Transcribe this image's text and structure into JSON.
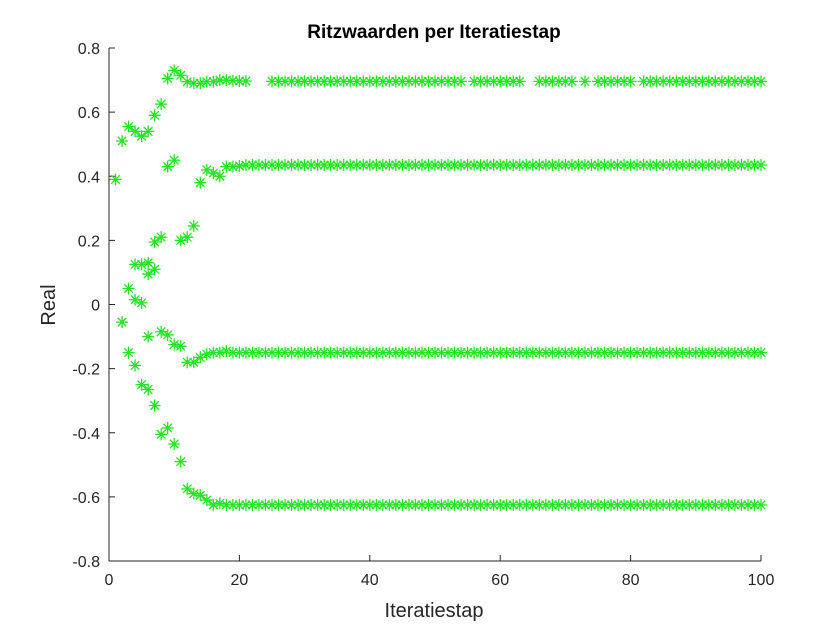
{
  "colors": {
    "marker": "#22e622",
    "axis": "#262626",
    "background": "#ffffff"
  },
  "chart_data": {
    "type": "scatter",
    "marker": "asterisk",
    "title": "Ritzwaarden per Iteratiestap",
    "xlabel": "Iteratiestap",
    "ylabel": "Real",
    "xlim": [
      0,
      100
    ],
    "ylim": [
      -0.8,
      0.8
    ],
    "xticks": [
      0,
      20,
      40,
      60,
      80,
      100
    ],
    "yticks": [
      -0.8,
      -0.6,
      -0.4,
      -0.2,
      0,
      0.2,
      0.4,
      0.6,
      0.8
    ],
    "xtick_labels": [
      "0",
      "20",
      "40",
      "60",
      "80",
      "100"
    ],
    "ytick_labels": [
      "-0.8",
      "-0.6",
      "-0.4",
      "-0.2",
      "0",
      "0.2",
      "0.4",
      "0.6",
      "0.8"
    ],
    "grid": false,
    "series": [
      {
        "x": [
          1,
          2,
          3,
          4,
          5,
          6,
          7,
          8,
          9,
          10,
          11,
          12,
          13,
          14,
          15,
          16,
          17,
          18,
          19,
          20,
          21,
          25,
          26,
          27,
          28,
          29,
          30,
          31,
          32,
          33,
          34,
          35,
          36,
          37,
          38,
          39,
          40,
          41,
          42,
          43,
          44,
          45,
          46,
          47,
          48,
          49,
          50,
          51,
          52,
          53,
          54,
          56,
          57,
          58,
          59,
          60,
          61,
          62,
          63,
          66,
          67,
          68,
          69,
          70,
          71,
          73,
          75,
          76,
          77,
          78,
          79,
          80,
          82,
          83,
          84,
          85,
          86,
          87,
          88,
          89,
          90,
          91,
          92,
          93,
          94,
          95,
          96,
          97,
          98,
          99,
          100
        ],
        "y": [
          0.39,
          0.51,
          0.555,
          0.54,
          0.525,
          0.54,
          0.59,
          0.625,
          0.705,
          0.73,
          0.715,
          0.695,
          0.69,
          0.69,
          0.695,
          0.695,
          0.7,
          0.7,
          0.698,
          0.697,
          0.697,
          0.696,
          0.696,
          0.696,
          0.696,
          0.696,
          0.696,
          0.696,
          0.696,
          0.696,
          0.696,
          0.696,
          0.696,
          0.696,
          0.696,
          0.696,
          0.696,
          0.696,
          0.696,
          0.696,
          0.696,
          0.696,
          0.696,
          0.696,
          0.696,
          0.696,
          0.696,
          0.696,
          0.696,
          0.696,
          0.696,
          0.696,
          0.696,
          0.696,
          0.696,
          0.696,
          0.696,
          0.696,
          0.696,
          0.696,
          0.696,
          0.696,
          0.696,
          0.696,
          0.696,
          0.696,
          0.696,
          0.696,
          0.696,
          0.696,
          0.696,
          0.696,
          0.696,
          0.696,
          0.696,
          0.696,
          0.696,
          0.696,
          0.696,
          0.696,
          0.696,
          0.696,
          0.696,
          0.696,
          0.696,
          0.696,
          0.696,
          0.696,
          0.696,
          0.696,
          0.696
        ]
      },
      {
        "x": [
          4,
          5,
          6,
          7,
          8,
          9,
          10,
          11,
          12,
          13,
          14,
          15,
          16,
          17,
          18,
          19,
          20,
          21,
          22,
          23,
          24,
          25,
          26,
          27,
          28,
          29,
          30,
          31,
          32,
          33,
          34,
          35,
          36,
          37,
          38,
          39,
          40,
          41,
          42,
          43,
          44,
          45,
          46,
          47,
          48,
          49,
          50,
          51,
          52,
          53,
          54,
          55,
          56,
          57,
          58,
          59,
          60,
          61,
          62,
          63,
          64,
          65,
          66,
          67,
          68,
          69,
          70,
          71,
          72,
          73,
          74,
          75,
          76,
          77,
          78,
          79,
          80,
          81,
          82,
          83,
          84,
          85,
          86,
          87,
          88,
          89,
          90,
          91,
          92,
          93,
          94,
          95,
          96,
          97,
          98,
          99,
          100
        ],
        "y": [
          0.125,
          0.125,
          0.13,
          0.195,
          0.21,
          0.43,
          0.45,
          0.2,
          0.21,
          0.245,
          0.38,
          0.42,
          0.41,
          0.4,
          0.43,
          0.43,
          0.432,
          0.435,
          0.435,
          0.435,
          0.435,
          0.435,
          0.435,
          0.435,
          0.435,
          0.435,
          0.435,
          0.435,
          0.435,
          0.435,
          0.435,
          0.435,
          0.435,
          0.435,
          0.435,
          0.435,
          0.435,
          0.435,
          0.435,
          0.435,
          0.435,
          0.435,
          0.435,
          0.435,
          0.435,
          0.435,
          0.435,
          0.435,
          0.435,
          0.435,
          0.435,
          0.435,
          0.435,
          0.435,
          0.435,
          0.435,
          0.435,
          0.435,
          0.435,
          0.435,
          0.435,
          0.435,
          0.435,
          0.435,
          0.435,
          0.435,
          0.435,
          0.435,
          0.435,
          0.435,
          0.435,
          0.435,
          0.435,
          0.435,
          0.435,
          0.435,
          0.435,
          0.435,
          0.435,
          0.435,
          0.435,
          0.435,
          0.435,
          0.435,
          0.435,
          0.435,
          0.435,
          0.435,
          0.435,
          0.435,
          0.435,
          0.435,
          0.435,
          0.435,
          0.435,
          0.435,
          0.435
        ]
      },
      {
        "x": [
          2,
          3,
          4,
          5,
          6,
          6,
          7,
          8,
          9,
          10,
          11,
          12,
          13,
          14,
          15,
          16,
          17,
          18,
          19,
          20,
          21,
          22,
          23,
          24,
          25,
          26,
          27,
          28,
          29,
          30,
          31,
          32,
          33,
          34,
          35,
          36,
          37,
          38,
          39,
          40,
          41,
          42,
          43,
          44,
          45,
          46,
          47,
          48,
          49,
          50,
          51,
          52,
          53,
          54,
          55,
          56,
          57,
          58,
          59,
          60,
          61,
          62,
          63,
          64,
          65,
          66,
          67,
          68,
          69,
          70,
          71,
          72,
          73,
          74,
          75,
          76,
          77,
          78,
          79,
          80,
          81,
          82,
          83,
          84,
          85,
          86,
          87,
          88,
          89,
          90,
          91,
          92,
          93,
          94,
          95,
          96,
          97,
          98,
          99,
          100
        ],
        "y": [
          -0.055,
          0.05,
          0.015,
          0.005,
          0.095,
          -0.1,
          0.11,
          -0.085,
          -0.095,
          -0.125,
          -0.13,
          -0.18,
          -0.18,
          -0.165,
          -0.155,
          -0.15,
          -0.15,
          -0.145,
          -0.15,
          -0.15,
          -0.15,
          -0.15,
          -0.15,
          -0.15,
          -0.15,
          -0.15,
          -0.15,
          -0.15,
          -0.15,
          -0.15,
          -0.15,
          -0.15,
          -0.15,
          -0.15,
          -0.15,
          -0.15,
          -0.15,
          -0.15,
          -0.15,
          -0.15,
          -0.15,
          -0.15,
          -0.15,
          -0.15,
          -0.15,
          -0.15,
          -0.15,
          -0.15,
          -0.15,
          -0.15,
          -0.15,
          -0.15,
          -0.15,
          -0.15,
          -0.15,
          -0.15,
          -0.15,
          -0.15,
          -0.15,
          -0.15,
          -0.15,
          -0.15,
          -0.15,
          -0.15,
          -0.15,
          -0.15,
          -0.15,
          -0.15,
          -0.15,
          -0.15,
          -0.15,
          -0.15,
          -0.15,
          -0.15,
          -0.15,
          -0.15,
          -0.15,
          -0.15,
          -0.15,
          -0.15,
          -0.15,
          -0.15,
          -0.15,
          -0.15,
          -0.15,
          -0.15,
          -0.15,
          -0.15,
          -0.15,
          -0.15,
          -0.15,
          -0.15,
          -0.15,
          -0.15,
          -0.15,
          -0.15,
          -0.15,
          -0.15,
          -0.15,
          -0.15
        ]
      },
      {
        "x": [
          3,
          4,
          5,
          6,
          7,
          8,
          9,
          10,
          11,
          12,
          13,
          14,
          15,
          16,
          17,
          18,
          19,
          20,
          21,
          22,
          23,
          24,
          25,
          26,
          27,
          28,
          29,
          30,
          31,
          32,
          33,
          34,
          35,
          36,
          37,
          38,
          39,
          40,
          41,
          42,
          43,
          44,
          45,
          46,
          47,
          48,
          49,
          50,
          51,
          52,
          53,
          54,
          55,
          56,
          57,
          58,
          59,
          60,
          61,
          62,
          63,
          64,
          65,
          66,
          67,
          68,
          69,
          70,
          71,
          72,
          73,
          74,
          75,
          76,
          77,
          78,
          79,
          80,
          81,
          82,
          83,
          84,
          85,
          86,
          87,
          88,
          89,
          90,
          91,
          92,
          93,
          94,
          95,
          96,
          97,
          98,
          99,
          100
        ],
        "y": [
          -0.15,
          -0.19,
          -0.25,
          -0.265,
          -0.315,
          -0.405,
          -0.385,
          -0.435,
          -0.49,
          -0.575,
          -0.59,
          -0.595,
          -0.61,
          -0.625,
          -0.62,
          -0.625,
          -0.625,
          -0.625,
          -0.625,
          -0.625,
          -0.625,
          -0.625,
          -0.625,
          -0.625,
          -0.625,
          -0.625,
          -0.625,
          -0.625,
          -0.625,
          -0.625,
          -0.625,
          -0.625,
          -0.625,
          -0.625,
          -0.625,
          -0.625,
          -0.625,
          -0.625,
          -0.625,
          -0.625,
          -0.625,
          -0.625,
          -0.625,
          -0.625,
          -0.625,
          -0.625,
          -0.625,
          -0.625,
          -0.625,
          -0.625,
          -0.625,
          -0.625,
          -0.625,
          -0.625,
          -0.625,
          -0.625,
          -0.625,
          -0.625,
          -0.625,
          -0.625,
          -0.625,
          -0.625,
          -0.625,
          -0.625,
          -0.625,
          -0.625,
          -0.625,
          -0.625,
          -0.625,
          -0.625,
          -0.625,
          -0.625,
          -0.625,
          -0.625,
          -0.625,
          -0.625,
          -0.625,
          -0.625,
          -0.625,
          -0.625,
          -0.625,
          -0.625,
          -0.625,
          -0.625,
          -0.625,
          -0.625,
          -0.625,
          -0.625,
          -0.625,
          -0.625,
          -0.625,
          -0.625,
          -0.625,
          -0.625,
          -0.625,
          -0.625,
          -0.625,
          -0.625
        ]
      }
    ]
  }
}
